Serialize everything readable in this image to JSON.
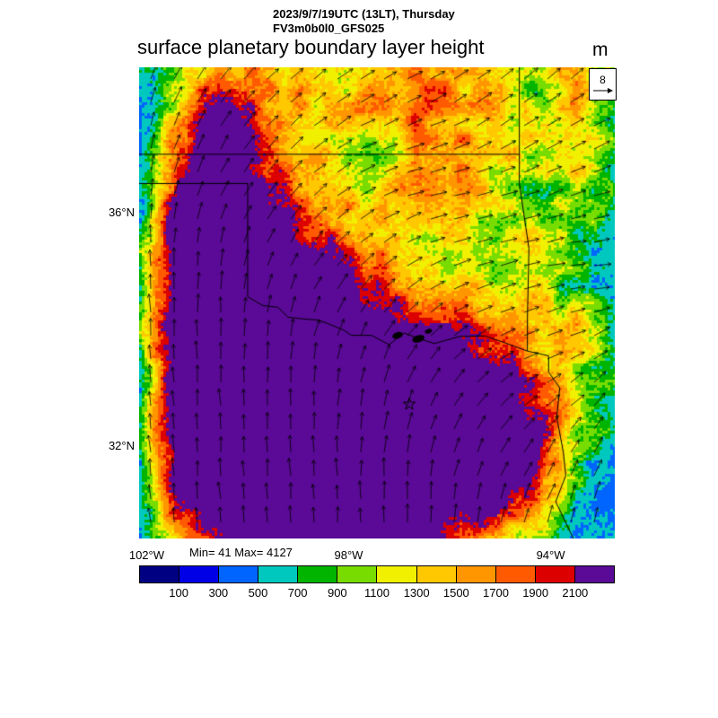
{
  "header": {
    "datetime_line": "2023/9/7/19UTC (13LT), Thursday",
    "model_line": "FV3m0b0l0_GFS025",
    "title": "surface planetary boundary layer height",
    "units": "m"
  },
  "map": {
    "stats_label": "Min= 41 Max= 4127",
    "vector_ref_value": "8",
    "y_ticks": [
      {
        "label": "36°N",
        "lat": 36
      },
      {
        "label": "32°N",
        "lat": 32
      }
    ],
    "x_ticks": [
      {
        "label": "102°W",
        "lon": -102
      },
      {
        "label": "98°W",
        "lon": -98
      },
      {
        "label": "94°W",
        "lon": -94
      }
    ],
    "extent": {
      "lon_min": -102.15,
      "lon_max": -92.73,
      "lat_min": 30.42,
      "lat_max": 38.49
    },
    "star_marker": {
      "lon": -96.8,
      "lat": 32.72
    },
    "lakes": [
      {
        "lon": -97.03,
        "lat": 33.9,
        "rx": 6,
        "ry": 3.5
      },
      {
        "lon": -96.62,
        "lat": 33.84,
        "rx": 7,
        "ry": 4
      },
      {
        "lon": -96.42,
        "lat": 33.97,
        "rx": 4,
        "ry": 2.5
      }
    ],
    "borders": [
      [
        [
          -102.15,
          37.0
        ],
        [
          -94.62,
          37.0
        ]
      ],
      [
        [
          -94.62,
          38.49
        ],
        [
          -94.62,
          36.5
        ],
        [
          -94.43,
          35.39
        ],
        [
          -94.46,
          34.2
        ],
        [
          -94.46,
          33.63
        ]
      ],
      [
        [
          -94.46,
          33.63
        ],
        [
          -94.04,
          33.55
        ],
        [
          -94.04,
          33.27
        ],
        [
          -93.82,
          33.0
        ],
        [
          -93.88,
          32.5
        ],
        [
          -93.75,
          31.9
        ],
        [
          -93.7,
          31.5
        ],
        [
          -93.9,
          31.05
        ],
        [
          -93.55,
          30.42
        ]
      ],
      [
        [
          -100.0,
          36.5
        ],
        [
          -100.0,
          34.56
        ]
      ],
      [
        [
          -102.15,
          36.5
        ],
        [
          -100.0,
          36.5
        ]
      ],
      [
        [
          -100.0,
          34.56
        ],
        [
          -99.7,
          34.41
        ],
        [
          -99.4,
          34.38
        ],
        [
          -99.2,
          34.21
        ],
        [
          -98.9,
          34.18
        ],
        [
          -98.6,
          34.16
        ],
        [
          -98.38,
          34.09
        ],
        [
          -98.1,
          33.99
        ],
        [
          -97.95,
          33.9
        ],
        [
          -97.55,
          33.9
        ],
        [
          -97.2,
          33.74
        ],
        [
          -96.9,
          33.94
        ],
        [
          -96.6,
          33.84
        ],
        [
          -96.3,
          33.76
        ],
        [
          -95.8,
          33.88
        ],
        [
          -95.3,
          33.89
        ],
        [
          -94.9,
          33.77
        ],
        [
          -94.46,
          33.63
        ]
      ]
    ]
  },
  "chart_data": {
    "type": "heatmap",
    "title": "surface planetary boundary layer height",
    "units": "m",
    "valid_time": "2023/9/7/19UTC (13LT), Thursday",
    "model": "FV3m0b0l0_GFS025",
    "min": 41,
    "max": 4127,
    "contour_levels": [
      100,
      300,
      500,
      700,
      900,
      1100,
      1300,
      1500,
      1700,
      1900,
      2100
    ],
    "palette": [
      "#000082",
      "#0000e6",
      "#0064ff",
      "#00c8be",
      "#00b400",
      "#78dc00",
      "#f0f000",
      "#ffc800",
      "#ff9600",
      "#ff5a00",
      "#dc0000",
      "#5a0a96"
    ],
    "grid_lon": [
      -102.15,
      -101.36,
      -100.58,
      -99.79,
      -99.01,
      -98.22,
      -97.44,
      -96.65,
      -95.87,
      -95.08,
      -94.3,
      -93.51,
      -92.73
    ],
    "grid_lat": [
      38.49,
      37.76,
      37.02,
      36.29,
      35.55,
      34.82,
      34.08,
      33.35,
      32.61,
      31.88,
      31.14,
      30.42
    ],
    "pbl_height_m": [
      [
        600,
        1000,
        1500,
        1600,
        1400,
        1300,
        1500,
        1700,
        1600,
        1300,
        800,
        1500,
        900
      ],
      [
        500,
        1200,
        2600,
        1800,
        1500,
        1300,
        1600,
        1800,
        1500,
        1400,
        1100,
        1600,
        700
      ],
      [
        500,
        2000,
        2900,
        2000,
        1500,
        1200,
        900,
        1500,
        1700,
        1300,
        1200,
        1400,
        800
      ],
      [
        600,
        2400,
        3000,
        2400,
        1700,
        1400,
        1200,
        1800,
        1500,
        1100,
        900,
        1000,
        600
      ],
      [
        700,
        2600,
        3000,
        2800,
        2200,
        1800,
        1500,
        1300,
        1200,
        1000,
        1300,
        900,
        500
      ],
      [
        800,
        2700,
        3000,
        2900,
        2700,
        2400,
        2000,
        1400,
        1200,
        1100,
        1200,
        800,
        600
      ],
      [
        900,
        2700,
        3000,
        3000,
        2900,
        2700,
        2500,
        2300,
        2200,
        1800,
        1300,
        1500,
        700
      ],
      [
        800,
        2700,
        3000,
        3000,
        3000,
        2900,
        2700,
        2600,
        2500,
        2400,
        1800,
        1000,
        800
      ],
      [
        800,
        2700,
        3000,
        3000,
        3000,
        2900,
        2800,
        2700,
        2600,
        2500,
        2200,
        1200,
        600
      ],
      [
        700,
        2600,
        2900,
        3000,
        3000,
        2900,
        2800,
        2700,
        2600,
        2500,
        2300,
        900,
        500
      ],
      [
        600,
        2400,
        2800,
        2900,
        2900,
        2800,
        2700,
        2600,
        2500,
        2400,
        1800,
        700,
        400
      ],
      [
        500,
        1400,
        2200,
        2500,
        2600,
        2400,
        2200,
        2300,
        2000,
        1400,
        800,
        500,
        500
      ]
    ],
    "wind_toward_deg": [
      [
        70,
        60,
        52,
        45,
        40,
        35,
        32,
        30,
        33,
        38,
        42,
        40,
        36
      ],
      [
        75,
        66,
        56,
        47,
        40,
        32,
        27,
        25,
        30,
        34,
        38,
        34,
        30
      ],
      [
        80,
        70,
        60,
        50,
        41,
        31,
        22,
        17,
        22,
        26,
        30,
        26,
        22
      ],
      [
        85,
        76,
        66,
        56,
        46,
        36,
        26,
        15,
        13,
        17,
        21,
        17,
        13
      ],
      [
        90,
        84,
        75,
        65,
        55,
        45,
        32,
        22,
        13,
        12,
        12,
        8,
        8
      ],
      [
        94,
        90,
        84,
        75,
        65,
        55,
        45,
        32,
        22,
        17,
        13,
        8,
        5
      ],
      [
        95,
        92,
        90,
        84,
        75,
        65,
        55,
        45,
        32,
        22,
        17,
        20,
        25
      ],
      [
        95,
        93,
        92,
        90,
        84,
        79,
        70,
        60,
        46,
        33,
        25,
        30,
        38
      ],
      [
        95,
        94,
        93,
        92,
        90,
        85,
        80,
        70,
        60,
        47,
        38,
        45,
        52
      ],
      [
        96,
        95,
        94,
        93,
        92,
        90,
        85,
        80,
        71,
        62,
        55,
        60,
        65
      ],
      [
        96,
        95,
        95,
        94,
        93,
        92,
        90,
        86,
        80,
        72,
        66,
        70,
        74
      ],
      [
        97,
        96,
        95,
        95,
        94,
        93,
        92,
        90,
        86,
        80,
        75,
        78,
        80
      ]
    ],
    "wind_ref": 8
  }
}
